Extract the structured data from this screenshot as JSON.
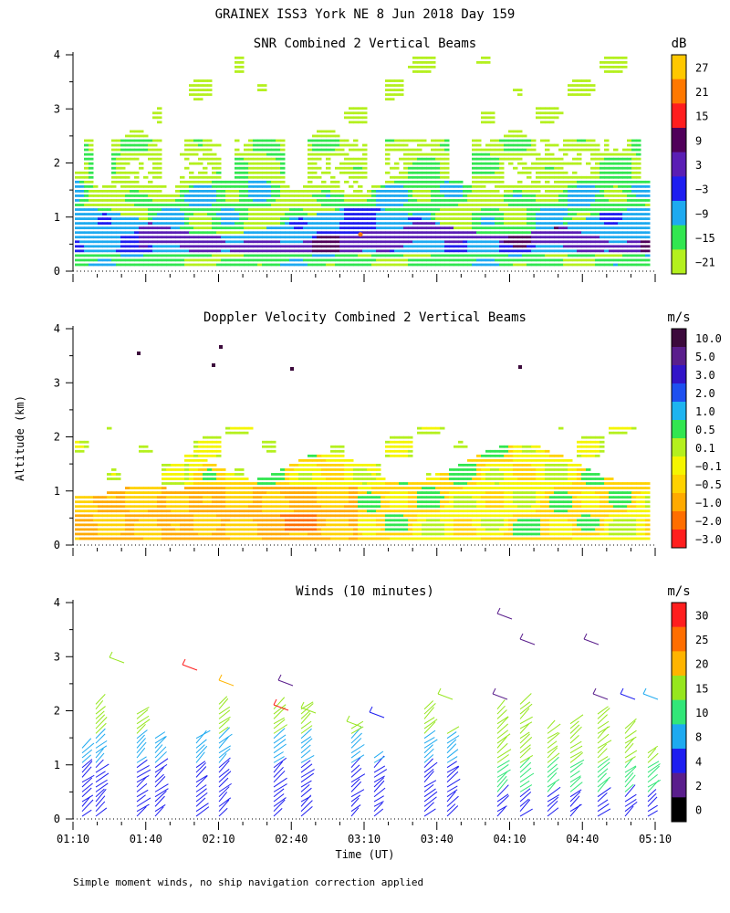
{
  "figure": {
    "title": "GRAINEX ISS3 York NE   8 Jun 2018 Day 159",
    "ylabel": "Altitude (km)",
    "xlabel": "Time (UT)",
    "footnote": "Simple moment winds, no ship navigation correction applied"
  },
  "chart_data": [
    {
      "type": "heatmap",
      "title": "SNR Combined 2 Vertical Beams",
      "x_ticks": [
        "01:10",
        "01:40",
        "02:10",
        "02:40",
        "03:10",
        "03:40",
        "04:10",
        "04:40",
        "05:10"
      ],
      "y_ticks": [
        "0",
        "1",
        "2",
        "3",
        "4"
      ],
      "ylim": [
        0,
        4
      ],
      "colorbar": {
        "unit": "dB",
        "labels": [
          "27",
          "21",
          "15",
          "9",
          "3",
          "−3",
          "−9",
          "−15",
          "−21"
        ],
        "colors": [
          "#ffc800",
          "#ff7800",
          "#ff1e1e",
          "#50005a",
          "#5a1eb4",
          "#1e1ef0",
          "#1eaaf0",
          "#32e650",
          "#b4f01e"
        ]
      }
    },
    {
      "type": "heatmap",
      "title": "Doppler Velocity Combined 2 Vertical Beams",
      "x_ticks": [
        "01:10",
        "01:40",
        "02:10",
        "02:40",
        "03:10",
        "03:40",
        "04:10",
        "04:40",
        "05:10"
      ],
      "y_ticks": [
        "0",
        "1",
        "2",
        "3",
        "4"
      ],
      "ylim": [
        0,
        4
      ],
      "colorbar": {
        "unit": "m/s",
        "labels": [
          "10.0",
          "5.0",
          "3.0",
          "2.0",
          "1.0",
          "0.5",
          "0.1",
          "−0.1",
          "−0.5",
          "−1.0",
          "−2.0",
          "−3.0"
        ],
        "colors": [
          "#3c0a3c",
          "#5a1e8c",
          "#3214c8",
          "#1e50f0",
          "#1eb4f0",
          "#32e650",
          "#b4f01e",
          "#f5f500",
          "#ffd200",
          "#ffaa00",
          "#ff6e00",
          "#ff1e1e"
        ]
      }
    },
    {
      "type": "scatter",
      "title": "Winds (10 minutes)",
      "x_ticks": [
        "01:10",
        "01:40",
        "02:10",
        "02:40",
        "03:10",
        "03:40",
        "04:10",
        "04:40",
        "05:10"
      ],
      "y_ticks": [
        "0",
        "1",
        "2",
        "3",
        "4"
      ],
      "ylim": [
        0,
        4
      ],
      "colorbar": {
        "unit": "m/s",
        "labels": [
          "30",
          "25",
          "20",
          "15",
          "10",
          "8",
          "4",
          "2",
          "0"
        ],
        "colors": [
          "#ff1e1e",
          "#ff6e00",
          "#ffb400",
          "#96e61e",
          "#32e678",
          "#1eaaf0",
          "#1e1ef0",
          "#5a1e8c",
          "#000000"
        ]
      }
    }
  ]
}
